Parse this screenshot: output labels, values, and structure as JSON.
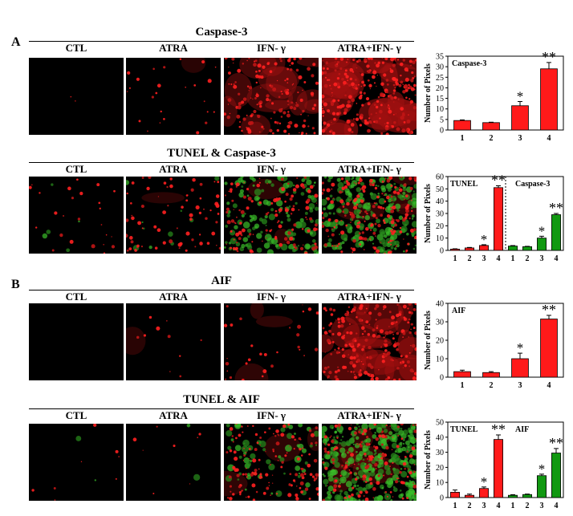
{
  "panels": [
    {
      "letter": "A"
    },
    {
      "letter": "B"
    }
  ],
  "columns": [
    "CTL",
    "ATRA",
    "IFN- γ",
    "ATRA+IFN- γ"
  ],
  "sections": [
    {
      "title": "Caspase-3"
    },
    {
      "title": "TUNEL & Caspase-3"
    },
    {
      "title": "AIF"
    },
    {
      "title": "TUNEL & AIF"
    }
  ],
  "colors": {
    "red": "#ff1a1a",
    "green": "#119911",
    "background": "#000000"
  },
  "chart_data": [
    {
      "type": "bar",
      "title": "Caspase-3",
      "ylabel": "Number of Pixels",
      "ylim": [
        0,
        35
      ],
      "yticks": [
        0,
        5,
        10,
        15,
        20,
        25,
        30,
        35
      ],
      "categories": [
        "1",
        "2",
        "3",
        "4"
      ],
      "series": [
        {
          "values": [
            4.5,
            3.5,
            11.5,
            29
          ],
          "errors": [
            0.3,
            0.2,
            2,
            3
          ],
          "color": "#ff1a1a",
          "marks": [
            "",
            "",
            "*",
            "**"
          ]
        }
      ]
    },
    {
      "type": "bar",
      "ylabel": "Number of Pixels",
      "ylim": [
        0,
        60
      ],
      "yticks": [
        0,
        10,
        20,
        30,
        40,
        50,
        60
      ],
      "groups": [
        {
          "name": "TUNEL",
          "categories": [
            "1",
            "2",
            "3",
            "4"
          ],
          "values": [
            1,
            2,
            4,
            51
          ],
          "errors": [
            0.3,
            0.4,
            0.6,
            1.5
          ],
          "color": "#ff1a1a",
          "marks": [
            "",
            "",
            "*",
            "**"
          ]
        },
        {
          "name": "Caspase-3",
          "categories": [
            "1",
            "2",
            "3",
            "4"
          ],
          "values": [
            3.5,
            3,
            10,
            29
          ],
          "errors": [
            0.4,
            0.3,
            1.5,
            1
          ],
          "color": "#119911",
          "marks": [
            "",
            "",
            "*",
            "**"
          ]
        }
      ]
    },
    {
      "type": "bar",
      "title": "AIF",
      "ylabel": "Number of Pixels",
      "ylim": [
        0,
        40
      ],
      "yticks": [
        0,
        10,
        20,
        30,
        40
      ],
      "categories": [
        "1",
        "2",
        "3",
        "4"
      ],
      "series": [
        {
          "values": [
            3,
            2.5,
            10,
            31.5
          ],
          "errors": [
            0.8,
            0.5,
            3,
            2
          ],
          "color": "#ff1a1a",
          "marks": [
            "",
            "",
            "*",
            "**"
          ]
        }
      ]
    },
    {
      "type": "bar",
      "ylabel": "Number of Pixels",
      "ylim": [
        0,
        50
      ],
      "yticks": [
        0,
        10,
        20,
        30,
        40,
        50
      ],
      "groups": [
        {
          "name": "TUNEL",
          "categories": [
            "1",
            "2",
            "3",
            "4"
          ],
          "values": [
            3.5,
            1.5,
            6,
            38.5
          ],
          "errors": [
            1.5,
            0.8,
            1,
            3
          ],
          "color": "#ff1a1a",
          "marks": [
            "",
            "",
            "*",
            "**"
          ]
        },
        {
          "name": "AIF",
          "categories": [
            "1",
            "2",
            "3",
            "4"
          ],
          "values": [
            1.5,
            2,
            14.5,
            29.5
          ],
          "errors": [
            0.4,
            0.3,
            1,
            3
          ],
          "color": "#119911",
          "marks": [
            "",
            "",
            "*",
            "**"
          ]
        }
      ]
    }
  ]
}
